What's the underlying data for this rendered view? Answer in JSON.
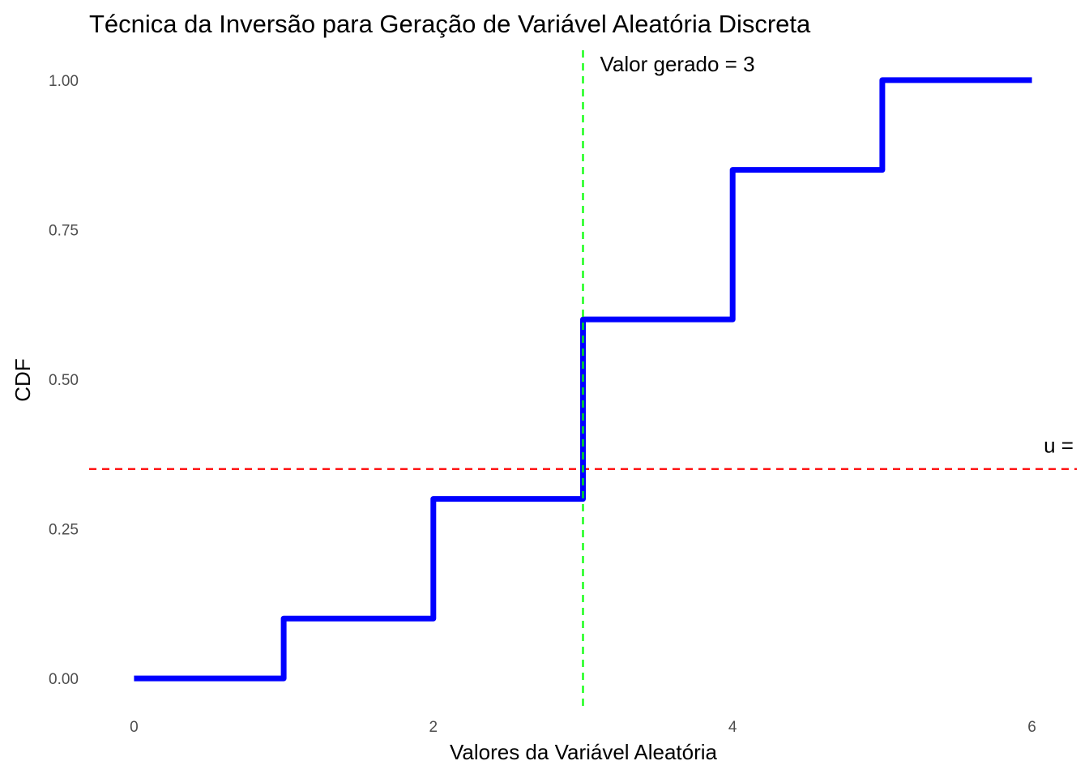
{
  "chart_data": {
    "type": "line",
    "subtype": "step",
    "title": "Técnica da Inversão para Geração de Variável Aleatória Discreta",
    "xlabel": "Valores da Variável Aleatória",
    "ylabel": "CDF",
    "xlim": [
      -0.3,
      6.3
    ],
    "ylim": [
      -0.05,
      1.05
    ],
    "x_ticks": [
      0,
      2,
      4,
      6
    ],
    "x_tick_labels": [
      "0",
      "2",
      "4",
      "6"
    ],
    "y_ticks": [
      0,
      0.25,
      0.5,
      0.75,
      1.0
    ],
    "y_tick_labels": [
      "0.00",
      "0.25",
      "0.50",
      "0.75",
      "1.00"
    ],
    "grid": false,
    "series": [
      {
        "x": [
          0,
          1,
          2,
          3,
          4,
          5,
          6
        ],
        "y": [
          0.0,
          0.1,
          0.3,
          0.6,
          0.85,
          1.0,
          1.0
        ],
        "color": "#0000ff",
        "step": "hv"
      }
    ],
    "reference_lines": {
      "u": {
        "orientation": "horizontal",
        "value": 0.35,
        "color": "#ff0000",
        "dash": "dashed"
      },
      "generated": {
        "orientation": "vertical",
        "value": 3,
        "color": "#00ff00",
        "dash": "dashed"
      }
    },
    "annotations": {
      "generated_label": "Valor gerado = 3",
      "u_label": "u ="
    }
  }
}
